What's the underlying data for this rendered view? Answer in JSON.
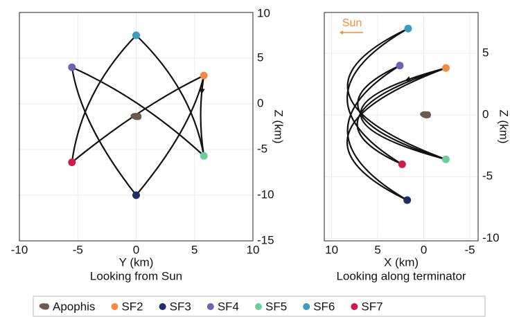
{
  "chart_data": [
    {
      "type": "scatter",
      "title": "Looking from Sun",
      "xlabel": "Y (km)",
      "ylabel": "Z (km)",
      "xlim": [
        -10,
        10
      ],
      "ylim": [
        -15,
        10
      ],
      "xticks": [
        -10,
        -5,
        0,
        5,
        10
      ],
      "yticks": [
        10,
        5,
        0,
        -5,
        -10,
        -15
      ],
      "grid": true,
      "series": [
        {
          "name": "Apophis",
          "color": "#6b5a4e",
          "x": [
            0
          ],
          "y": [
            -1.4
          ]
        },
        {
          "name": "SF2",
          "color": "#f58a42",
          "x": [
            5.8
          ],
          "y": [
            3.1
          ]
        },
        {
          "name": "SF3",
          "color": "#1f2d6b",
          "x": [
            0
          ],
          "y": [
            -10
          ]
        },
        {
          "name": "SF4",
          "color": "#7060b0",
          "x": [
            -5.5
          ],
          "y": [
            4
          ]
        },
        {
          "name": "SF5",
          "color": "#6ccf9a",
          "x": [
            5.8
          ],
          "y": [
            -5.7
          ]
        },
        {
          "name": "SF6",
          "color": "#3a9cc0",
          "x": [
            0
          ],
          "y": [
            7.5
          ]
        },
        {
          "name": "SF7",
          "color": "#d0194d",
          "x": [
            -5.5
          ],
          "y": [
            -6.4
          ]
        }
      ]
    },
    {
      "type": "scatter",
      "title": "Looking along terminator",
      "xlabel": "X (km)",
      "ylabel": "Z (km)",
      "annotation": "Sun",
      "xlim": [
        10.8,
        -5.9
      ],
      "ylim": [
        -10.2,
        8.3
      ],
      "xticks": [
        10,
        5,
        0,
        -5
      ],
      "yticks": [
        5,
        0,
        -5,
        -10
      ],
      "grid": true,
      "series": [
        {
          "color": "#6b5a4e",
          "x": [
            -0.2
          ],
          "y": [
            0
          ]
        },
        {
          "color": "#f58a42",
          "x": [
            -2.4
          ],
          "y": [
            3.8
          ]
        },
        {
          "color": "#1f2d6b",
          "x": [
            1.8
          ],
          "y": [
            -6.9
          ]
        },
        {
          "color": "#7060b0",
          "x": [
            2.6
          ],
          "y": [
            4
          ]
        },
        {
          "color": "#6ccf9a",
          "x": [
            -2.4
          ],
          "y": [
            -3.6
          ]
        },
        {
          "color": "#3a9cc0",
          "x": [
            1.7
          ],
          "y": [
            7
          ]
        },
        {
          "color": "#d0194d",
          "x": [
            2.35
          ],
          "y": [
            -4
          ]
        }
      ]
    }
  ]
}
